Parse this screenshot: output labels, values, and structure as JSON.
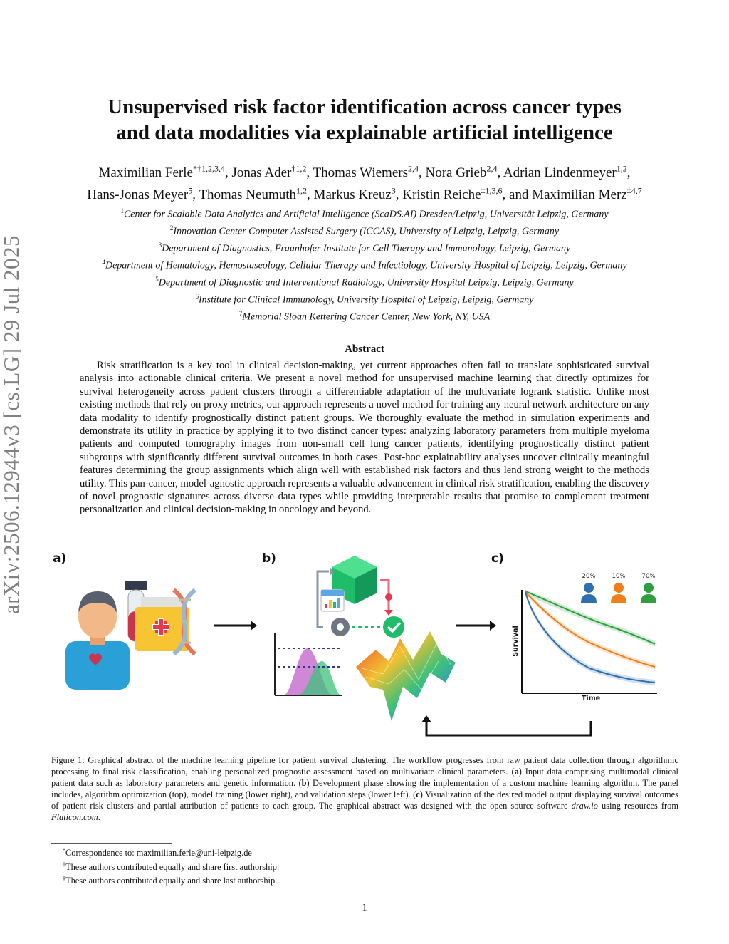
{
  "arxiv_stamp": "arXiv:2506.12944v3  [cs.LG]  29 Jul 2025",
  "title_line1": "Unsupervised risk factor identification across cancer types",
  "title_line2": "and data modalities via explainable artificial intelligence",
  "authors": [
    {
      "name": "Maximilian Ferle",
      "sup": "*†1,2,3,4",
      "sep": ", "
    },
    {
      "name": "Jonas Ader",
      "sup": "†1,2",
      "sep": ", "
    },
    {
      "name": "Thomas Wiemers",
      "sup": "2,4",
      "sep": ", "
    },
    {
      "name": "Nora Grieb",
      "sup": "2,4",
      "sep": ", "
    },
    {
      "name": "Adrian Lindenmeyer",
      "sup": "1,2",
      "sep": ","
    },
    {
      "name": "Hans-Jonas Meyer",
      "sup": "5",
      "sep": ", "
    },
    {
      "name": "Thomas Neumuth",
      "sup": "1,2",
      "sep": ", "
    },
    {
      "name": "Markus Kreuz",
      "sup": "3",
      "sep": ", "
    },
    {
      "name": "Kristin Reiche",
      "sup": "‡1,3,6",
      "sep": ", and "
    },
    {
      "name": "Maximilian Merz",
      "sup": "‡4,7",
      "sep": ""
    }
  ],
  "affiliations": [
    {
      "num": "1",
      "text": "Center for Scalable Data Analytics and Artificial Intelligence (ScaDS.AI) Dresden/Leipzig, Universität Leipzig, Germany"
    },
    {
      "num": "2",
      "text": "Innovation Center Computer Assisted Surgery (ICCAS), University of Leipzig, Leipzig, Germany"
    },
    {
      "num": "3",
      "text": "Department of Diagnostics, Fraunhofer Institute for Cell Therapy and Immunology, Leipzig, Germany"
    },
    {
      "num": "4",
      "text": "Department of Hematology, Hemostaseology, Cellular Therapy and Infectiology, University Hospital of Leipzig, Leipzig, Germany"
    },
    {
      "num": "5",
      "text": "Department of Diagnostic and Interventional Radiology, University Hospital Leipzig, Leipzig, Germany"
    },
    {
      "num": "6",
      "text": "Institute for Clinical Immunology, University Hospital of Leipzig, Leipzig, Germany"
    },
    {
      "num": "7",
      "text": "Memorial Sloan Kettering Cancer Center, New York, NY, USA"
    }
  ],
  "abstract_heading": "Abstract",
  "abstract": "Risk stratification is a key tool in clinical decision-making, yet current approaches often fail to translate sophisticated survival analysis into actionable clinical criteria. We present a novel method for unsupervised machine learning that directly optimizes for survival heterogeneity across patient clusters through a differentiable adaptation of the multivariate logrank statistic. Unlike most existing methods that rely on proxy metrics, our approach represents a novel method for training any neural network architecture on any data modality to identify prognostically distinct patient groups. We thoroughly evaluate the method in simulation experiments and demonstrate its utility in practice by applying it to two distinct cancer types: analyzing laboratory parameters from multiple myeloma patients and computed tomography images from non-small cell lung cancer patients, identifying prognostically distinct patient subgroups with significantly different survival outcomes in both cases. Post-hoc explainability analyses uncover clinically meaningful features determining the group assignments which align well with established risk factors and thus lend strong weight to the methods utility. This pan-cancer, model-agnostic approach represents a valuable advancement in clinical risk stratification, enabling the discovery of novel prognostic signatures across diverse data types while providing interpretable results that promise to complement treatment personalization and clinical decision-making in oncology and beyond.",
  "figure": {
    "panel_a": "a)",
    "panel_b": "b)",
    "panel_c": "c)",
    "group_shares": [
      "20%",
      "10%",
      "70%"
    ],
    "y_axis_label": "Survival",
    "x_axis_label": "Time",
    "colors": {
      "blue": "#2f6fb0",
      "orange": "#f07f1a",
      "green": "#2e9e3e"
    }
  },
  "caption": {
    "lead": "Figure 1:  Graphical abstract of the machine learning pipeline for patient survival clustering.  The workflow progresses from raw patient data collection through algorithmic processing to final risk classification, enabling personalized prognostic assessment based on multivariate clinical parameters. (",
    "a_label": "a",
    "a_text": ") Input data comprising multimodal clinical patient data such as laboratory parameters and genetic information. (",
    "b_label": "b",
    "b_text": ") Development phase showing the implementation of a custom machine learning algorithm. The panel includes, algorithm optimization (top), model training (lower right), and validation steps (lower left). (",
    "c_label": "c",
    "c_text": ") Visualization of the desired model output displaying survival outcomes of patient risk clusters and partial attribution of patients to each group. The graphical abstract was designed with the open source software ",
    "tool1": "draw.io",
    "mid": " using resources from ",
    "tool2": "Flaticon.com",
    "end": "."
  },
  "footnotes": [
    {
      "mark": "*",
      "text": "Correspondence to: maximilian.ferle@uni-leipzig.de"
    },
    {
      "mark": "†",
      "text": "These authors contributed equally and share first authorship."
    },
    {
      "mark": "‡",
      "text": "These authors contributed equally and share last authorship."
    }
  ],
  "page_number": "1"
}
